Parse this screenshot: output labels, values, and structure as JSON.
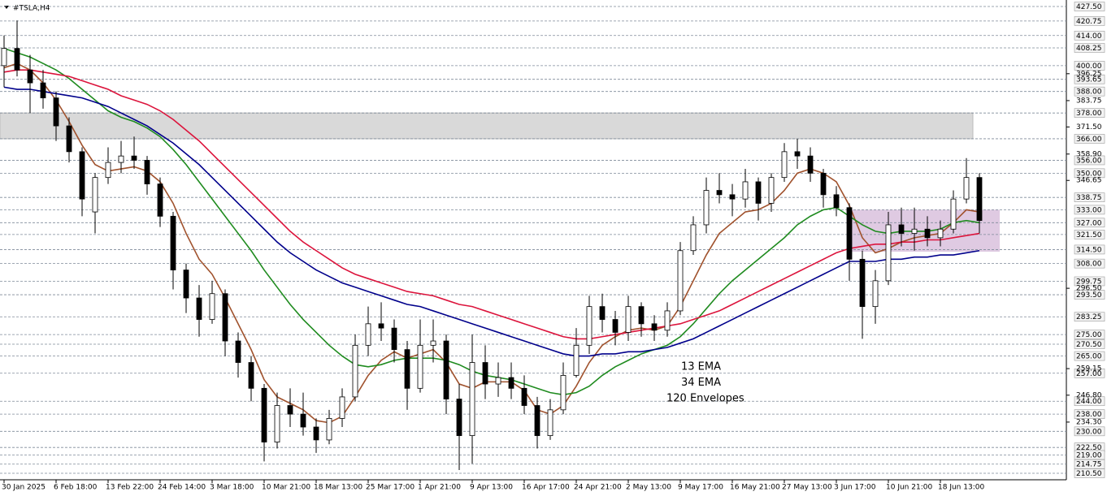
{
  "chart_data": {
    "type": "candlestick",
    "title": "#TSLA,H4",
    "categories": [
      "30 Jan 2025",
      null,
      null,
      null,
      "6 Feb 18:00",
      null,
      null,
      null,
      "13 Feb 22:00",
      null,
      null,
      null,
      "24 Feb 14:00",
      null,
      null,
      null,
      "3 Mar 18:00",
      null,
      null,
      null,
      "10 Mar 21:00",
      null,
      null,
      null,
      "18 Mar 13:00",
      null,
      null,
      null,
      "25 Mar 17:00",
      null,
      null,
      null,
      "1 Apr 21:00",
      null,
      null,
      null,
      "9 Apr 13:00",
      null,
      null,
      null,
      "16 Apr 17:00",
      null,
      null,
      null,
      "24 Apr 21:00",
      null,
      null,
      null,
      "2 May 13:00",
      null,
      null,
      null,
      "9 May 17:00",
      null,
      null,
      null,
      "16 May 21:00",
      null,
      null,
      null,
      "27 May 13:00",
      null,
      null,
      null,
      "3 Jun 17:00",
      null,
      null,
      null,
      "10 Jun 21:00",
      null,
      null,
      null,
      "18 Jun 13:00",
      null,
      null,
      null
    ],
    "open": [
      400,
      408,
      398,
      392,
      385,
      372,
      360,
      332,
      348,
      355,
      358,
      356,
      345,
      330,
      305,
      292,
      282,
      294,
      272,
      262,
      250,
      225,
      242,
      238,
      232,
      226,
      236,
      246,
      270,
      280,
      278,
      268,
      250,
      270,
      272,
      245,
      228,
      262,
      252,
      255,
      250,
      242,
      228,
      240,
      256,
      270,
      288,
      282,
      276,
      288,
      280,
      277,
      286,
      314,
      326,
      342,
      340,
      338,
      346,
      336,
      348,
      360,
      358,
      350,
      340,
      334,
      310,
      288,
      300,
      326,
      322,
      324,
      320,
      324,
      338,
      348
    ],
    "high": [
      414,
      421,
      405,
      398,
      388,
      376,
      362,
      350,
      362,
      365,
      367,
      358,
      348,
      332,
      308,
      298,
      300,
      296,
      276,
      265,
      252,
      248,
      250,
      248,
      236,
      240,
      250,
      275,
      288,
      290,
      282,
      272,
      282,
      282,
      275,
      252,
      275,
      270,
      262,
      262,
      256,
      246,
      245,
      262,
      278,
      293,
      294,
      286,
      293,
      290,
      284,
      290,
      318,
      330,
      348,
      350,
      345,
      352,
      348,
      350,
      364,
      366,
      362,
      352,
      344,
      336,
      314,
      305,
      332,
      334,
      334,
      330,
      328,
      342,
      357,
      350
    ],
    "low": [
      390,
      395,
      378,
      380,
      365,
      355,
      330,
      322,
      345,
      350,
      352,
      340,
      325,
      296,
      285,
      274,
      280,
      265,
      255,
      244,
      216,
      222,
      232,
      228,
      220,
      224,
      232,
      244,
      265,
      272,
      262,
      240,
      248,
      262,
      238,
      212,
      215,
      245,
      246,
      245,
      238,
      222,
      226,
      238,
      255,
      266,
      276,
      270,
      272,
      274,
      272,
      274,
      284,
      312,
      322,
      336,
      330,
      334,
      328,
      332,
      346,
      352,
      346,
      334,
      330,
      300,
      273,
      280,
      298,
      316,
      314,
      316,
      316,
      322,
      336,
      322
    ],
    "close": [
      408,
      398,
      392,
      385,
      372,
      360,
      338,
      348,
      355,
      358,
      356,
      345,
      330,
      305,
      292,
      282,
      294,
      272,
      262,
      250,
      225,
      242,
      238,
      232,
      226,
      236,
      246,
      270,
      280,
      278,
      268,
      250,
      270,
      272,
      245,
      228,
      262,
      252,
      255,
      250,
      242,
      228,
      240,
      256,
      270,
      288,
      282,
      276,
      288,
      280,
      277,
      286,
      314,
      326,
      342,
      340,
      338,
      346,
      336,
      348,
      360,
      358,
      350,
      340,
      334,
      310,
      288,
      300,
      326,
      322,
      324,
      320,
      324,
      338,
      348,
      328
    ],
    "series": [
      {
        "name": "13 EMA",
        "color": "#a0522d",
        "values": [
          399,
          401,
          398,
          392,
          384,
          374,
          363,
          354,
          351,
          352,
          353,
          351,
          346,
          336,
          322,
          310,
          303,
          292,
          280,
          268,
          254,
          246,
          243,
          240,
          235,
          234,
          237,
          246,
          256,
          263,
          267,
          264,
          266,
          268,
          262,
          252,
          250,
          253,
          253,
          253,
          249,
          240,
          238,
          242,
          251,
          262,
          270,
          274,
          277,
          278,
          277,
          279,
          288,
          300,
          312,
          322,
          327,
          332,
          333,
          336,
          342,
          350,
          352,
          350,
          346,
          335,
          320,
          313,
          315,
          318,
          320,
          321,
          322,
          327,
          333,
          332
        ]
      },
      {
        "name": "34 EMA",
        "color": "#1f8b1f",
        "values": [
          408,
          406,
          404,
          401,
          398,
          394,
          389,
          384,
          379,
          376,
          374,
          371,
          367,
          361,
          354,
          346,
          338,
          330,
          322,
          314,
          305,
          297,
          289,
          282,
          276,
          270,
          265,
          261,
          260,
          261,
          263,
          264,
          264,
          264,
          263,
          261,
          258,
          256,
          255,
          254,
          252,
          250,
          248,
          247,
          248,
          251,
          256,
          260,
          263,
          266,
          268,
          270,
          274,
          280,
          287,
          294,
          300,
          305,
          310,
          315,
          320,
          326,
          330,
          333,
          334,
          330,
          326,
          323,
          322,
          323,
          323,
          323,
          324,
          327,
          328,
          327
        ]
      },
      {
        "name": "120 Envelopes",
        "color": "#dc143c",
        "values": [
          397,
          398,
          398,
          397,
          396,
          395,
          393,
          391,
          389,
          386,
          384,
          382,
          379,
          375,
          370,
          365,
          359,
          353,
          347,
          341,
          335,
          329,
          323,
          318,
          314,
          310,
          306,
          303,
          301,
          299,
          297,
          295,
          294,
          293,
          291,
          289,
          288,
          286,
          284,
          282,
          280,
          278,
          276,
          274,
          273,
          273,
          274,
          275,
          276,
          277,
          278,
          279,
          280,
          282,
          284,
          286,
          289,
          292,
          295,
          298,
          301,
          304,
          307,
          310,
          313,
          315,
          316,
          317,
          317,
          318,
          318,
          319,
          319,
          320,
          321,
          322
        ],
        "lower_color": "#00008b",
        "lower_values": [
          390,
          389,
          389,
          388,
          387,
          386,
          385,
          383,
          381,
          378,
          375,
          372,
          368,
          364,
          359,
          354,
          348,
          342,
          336,
          330,
          324,
          318,
          313,
          309,
          305,
          302,
          299,
          297,
          295,
          293,
          291,
          289,
          288,
          286,
          284,
          282,
          280,
          278,
          276,
          274,
          272,
          270,
          268,
          266,
          265,
          265,
          266,
          266,
          267,
          267,
          268,
          269,
          271,
          273,
          276,
          279,
          282,
          285,
          288,
          291,
          294,
          297,
          300,
          303,
          306,
          309,
          309,
          309,
          310,
          310,
          311,
          311,
          312,
          312,
          313,
          314
        ]
      }
    ],
    "zones": [
      {
        "range": [
          366,
          378
        ],
        "color": "#d9d9d9"
      },
      {
        "range": [
          313.5,
          333
        ],
        "color": "#c9a6cf"
      }
    ],
    "ylim": [
      210.5,
      427.5
    ],
    "yticks": [
      {
        "value": 396.25,
        "label": "396.25"
      },
      {
        "value": 383.75,
        "label": "383.75"
      },
      {
        "value": 371.5,
        "label": "371.50"
      },
      {
        "value": 358.9,
        "label": "358.90"
      },
      {
        "value": 346.65,
        "label": "346.65"
      },
      {
        "value": 296.5,
        "label": "296.50"
      },
      {
        "value": 259.15,
        "label": "259.15"
      },
      {
        "value": 246.8,
        "label": "246.80"
      },
      {
        "value": 234.3,
        "label": "234.30"
      }
    ],
    "levels": [
      {
        "value": 427.5,
        "label": "427.50"
      },
      {
        "value": 420.75,
        "label": "420.75"
      },
      {
        "value": 414,
        "label": "414.00"
      },
      {
        "value": 408.25,
        "label": "408.25"
      },
      {
        "value": 400,
        "label": "400.00"
      },
      {
        "value": 393.65,
        "label": "393.65"
      },
      {
        "value": 388,
        "label": "388.00"
      },
      {
        "value": 378,
        "label": "378.00"
      },
      {
        "value": 366,
        "label": "366.00"
      },
      {
        "value": 356,
        "label": "356.00"
      },
      {
        "value": 350,
        "label": "350.00"
      },
      {
        "value": 338.75,
        "label": "338.75"
      },
      {
        "value": 333,
        "label": "333.00"
      },
      {
        "value": 327,
        "label": "327.00"
      },
      {
        "value": 321.5,
        "label": "321.50"
      },
      {
        "value": 314.5,
        "label": "314.50"
      },
      {
        "value": 308,
        "label": "308.00"
      },
      {
        "value": 299.75,
        "label": "299.75"
      },
      {
        "value": 293.5,
        "label": "293.50"
      },
      {
        "value": 283.25,
        "label": "283.25"
      },
      {
        "value": 275,
        "label": "275.00"
      },
      {
        "value": 270.5,
        "label": "270.50"
      },
      {
        "value": 265,
        "label": "265.00"
      },
      {
        "value": 257,
        "label": "257.00"
      },
      {
        "value": 244,
        "label": "244.00"
      },
      {
        "value": 238,
        "label": "238.00"
      },
      {
        "value": 230,
        "label": "230.00"
      },
      {
        "value": 222.5,
        "label": "222.50"
      },
      {
        "value": 219,
        "label": "219.00"
      },
      {
        "value": 214.75,
        "label": "214.75"
      },
      {
        "value": 210.5,
        "label": "210.50"
      }
    ],
    "bull_color": "#ffffff",
    "bear_color": "#000000"
  }
}
